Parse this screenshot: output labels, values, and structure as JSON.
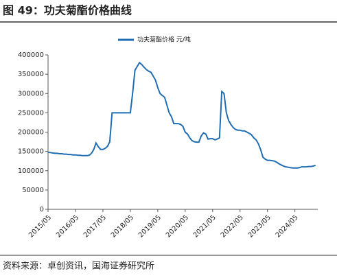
{
  "header": {
    "title": "图 49：功夫菊酯价格曲线"
  },
  "chart_data": {
    "type": "line",
    "x": [
      "2015/05",
      "2015/06",
      "2015/07",
      "2015/08",
      "2015/09",
      "2015/10",
      "2015/11",
      "2015/12",
      "2016/01",
      "2016/02",
      "2016/03",
      "2016/04",
      "2016/05",
      "2016/06",
      "2016/07",
      "2016/08",
      "2016/09",
      "2016/10",
      "2016/11",
      "2016/12",
      "2017/01",
      "2017/02",
      "2017/03",
      "2017/04",
      "2017/05",
      "2017/06",
      "2017/07",
      "2017/08",
      "2017/09",
      "2017/10",
      "2017/11",
      "2017/12",
      "2018/01",
      "2018/02",
      "2018/03",
      "2018/04",
      "2018/05",
      "2018/06",
      "2018/07",
      "2018/08",
      "2018/09",
      "2018/10",
      "2018/11",
      "2018/12",
      "2019/01",
      "2019/02",
      "2019/03",
      "2019/04",
      "2019/05",
      "2019/06",
      "2019/07",
      "2019/08",
      "2019/09",
      "2019/10",
      "2019/11",
      "2019/12",
      "2020/01",
      "2020/02",
      "2020/03",
      "2020/04",
      "2020/05",
      "2020/06",
      "2020/07",
      "2020/08",
      "2020/09",
      "2020/10",
      "2020/11",
      "2020/12",
      "2021/01",
      "2021/02",
      "2021/03",
      "2021/04",
      "2021/05",
      "2021/06",
      "2021/07",
      "2021/08",
      "2021/09",
      "2021/10",
      "2021/11",
      "2021/12",
      "2022/01",
      "2022/02",
      "2022/03",
      "2022/04",
      "2022/05",
      "2022/06",
      "2022/07",
      "2022/08",
      "2022/09",
      "2022/10",
      "2022/11",
      "2022/12",
      "2023/01",
      "2023/02",
      "2023/03",
      "2023/04",
      "2023/05",
      "2023/06",
      "2023/07",
      "2023/08",
      "2023/09",
      "2023/10",
      "2023/11",
      "2023/12",
      "2024/01",
      "2024/02",
      "2024/03",
      "2024/04",
      "2024/05",
      "2024/06",
      "2024/07",
      "2024/08",
      "2024/09",
      "2024/10",
      "2024/11",
      "2024/12",
      "2025/01",
      "2025/02"
    ],
    "series": [
      {
        "name": "功夫菊酯价格  元/吨",
        "color": "#1f6db3",
        "values": [
          148000,
          147000,
          146000,
          145000,
          145000,
          144000,
          144000,
          143000,
          143000,
          142000,
          142000,
          141000,
          141000,
          140000,
          140000,
          139000,
          139000,
          139000,
          140000,
          145000,
          155000,
          172000,
          162000,
          155000,
          155000,
          158000,
          163000,
          175000,
          250000,
          250000,
          250000,
          250000,
          250000,
          250000,
          250000,
          250000,
          250000,
          300000,
          360000,
          370000,
          380000,
          375000,
          368000,
          362000,
          358000,
          355000,
          345000,
          335000,
          315000,
          300000,
          295000,
          290000,
          270000,
          250000,
          240000,
          222000,
          222000,
          222000,
          220000,
          215000,
          200000,
          195000,
          185000,
          178000,
          175000,
          174000,
          174000,
          190000,
          198000,
          195000,
          182000,
          183000,
          183000,
          180000,
          182000,
          185000,
          305000,
          300000,
          250000,
          230000,
          220000,
          212000,
          207000,
          205000,
          205000,
          203000,
          203000,
          200000,
          197000,
          193000,
          185000,
          180000,
          170000,
          155000,
          135000,
          130000,
          127000,
          127000,
          126000,
          125000,
          122000,
          118000,
          115000,
          112000,
          110000,
          109000,
          108000,
          107000,
          107000,
          107000,
          108000,
          110000,
          110000,
          110000,
          111000,
          111000,
          112000,
          114000
        ]
      }
    ],
    "xlim": [
      "2015/05",
      "2025/03"
    ],
    "xticks": [
      "2015/05",
      "2016/05",
      "2017/05",
      "2018/05",
      "2019/05",
      "2020/05",
      "2021/05",
      "2022/05",
      "2023/05",
      "2024/05"
    ],
    "ylim": [
      0,
      400000
    ],
    "yticks": [
      0,
      50000,
      100000,
      150000,
      200000,
      250000,
      300000,
      350000,
      400000
    ],
    "legend": "top"
  },
  "footer": {
    "source": "资料来源：卓创资讯，国海证券研究所"
  }
}
